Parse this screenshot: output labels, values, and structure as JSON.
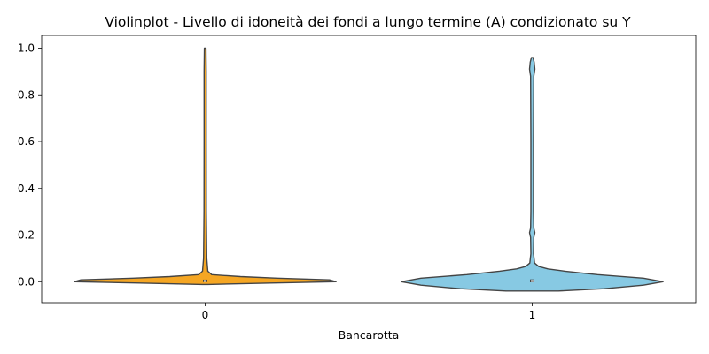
{
  "chart_data": {
    "type": "violin",
    "title": "Violinplot - Livello di idoneità dei fondi a lungo termine (A) condizionato su Y",
    "xlabel": "Bancarotta",
    "ylabel": "",
    "categories": [
      "0",
      "1"
    ],
    "ylim": [
      -0.09,
      1.055
    ],
    "yticks": [
      "0.0",
      "0.2",
      "0.4",
      "0.6",
      "0.8",
      "1.0"
    ],
    "grid": false,
    "violins": [
      {
        "category": "0",
        "color": "#F5A623",
        "range": [
          -0.012,
          1.0
        ],
        "median": 0.003,
        "quartiles": [
          0.002,
          0.005
        ],
        "density": [
          {
            "y": -0.012,
            "w": 0.02
          },
          {
            "y": -0.006,
            "w": 0.5
          },
          {
            "y": 0.0,
            "w": 1.0
          },
          {
            "y": 0.008,
            "w": 0.95
          },
          {
            "y": 0.015,
            "w": 0.55
          },
          {
            "y": 0.022,
            "w": 0.27
          },
          {
            "y": 0.03,
            "w": 0.05
          },
          {
            "y": 0.045,
            "w": 0.02
          },
          {
            "y": 0.1,
            "w": 0.012
          },
          {
            "y": 0.3,
            "w": 0.009
          },
          {
            "y": 0.6,
            "w": 0.008
          },
          {
            "y": 0.9,
            "w": 0.008
          },
          {
            "y": 1.0,
            "w": 0.006
          }
        ]
      },
      {
        "category": "1",
        "color": "#87C9E3",
        "range": [
          -0.04,
          0.96
        ],
        "median": 0.003,
        "quartiles": [
          0.001,
          0.006
        ],
        "density": [
          {
            "y": -0.04,
            "w": 0.2
          },
          {
            "y": -0.03,
            "w": 0.55
          },
          {
            "y": -0.015,
            "w": 0.85
          },
          {
            "y": 0.0,
            "w": 1.0
          },
          {
            "y": 0.015,
            "w": 0.85
          },
          {
            "y": 0.03,
            "w": 0.5
          },
          {
            "y": 0.045,
            "w": 0.25
          },
          {
            "y": 0.055,
            "w": 0.12
          },
          {
            "y": 0.065,
            "w": 0.05
          },
          {
            "y": 0.08,
            "w": 0.018
          },
          {
            "y": 0.12,
            "w": 0.01
          },
          {
            "y": 0.19,
            "w": 0.012
          },
          {
            "y": 0.21,
            "w": 0.02
          },
          {
            "y": 0.23,
            "w": 0.012
          },
          {
            "y": 0.3,
            "w": 0.01
          },
          {
            "y": 0.6,
            "w": 0.01
          },
          {
            "y": 0.88,
            "w": 0.012
          },
          {
            "y": 0.91,
            "w": 0.02
          },
          {
            "y": 0.94,
            "w": 0.015
          },
          {
            "y": 0.96,
            "w": 0.006
          }
        ]
      }
    ]
  }
}
